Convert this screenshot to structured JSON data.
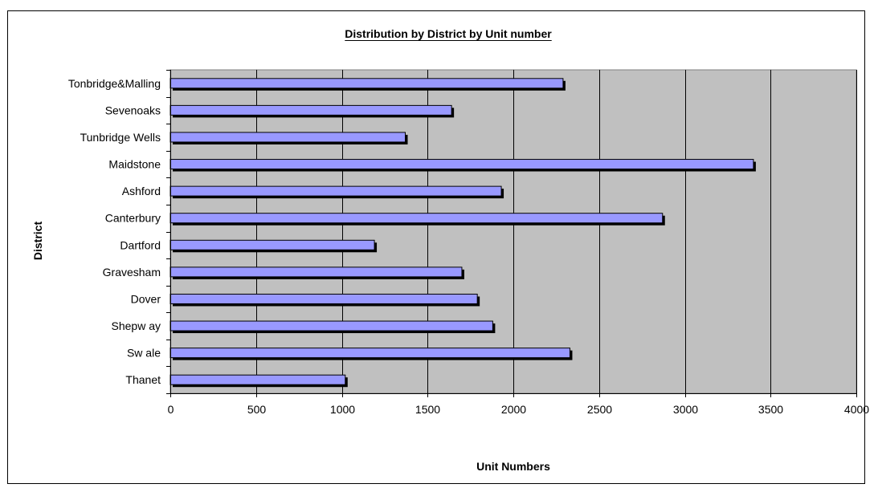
{
  "chart_data": {
    "type": "bar",
    "orientation": "horizontal",
    "title": "Distribution by District by Unit number",
    "xlabel": "Unit Numbers",
    "ylabel": "District",
    "xlim": [
      0,
      4000
    ],
    "xticks": [
      0,
      500,
      1000,
      1500,
      2000,
      2500,
      3000,
      3500,
      4000
    ],
    "categories": [
      "Tonbridge&Malling",
      "Sevenoaks",
      "Tunbridge Wells",
      "Maidstone",
      "Ashford",
      "Canterbury",
      "Dartford",
      "Gravesham",
      "Dover",
      "Shepw ay",
      "Sw ale",
      "Thanet"
    ],
    "values": [
      2290,
      1640,
      1370,
      3400,
      1930,
      2870,
      1190,
      1700,
      1790,
      1880,
      2330,
      1020
    ],
    "grid": "vertical",
    "legend": "none",
    "colors": {
      "bar_fill": "#9999ff",
      "bar_shadow": "#000000",
      "plot_background": "#c0c0c0",
      "gridline": "#000000"
    }
  }
}
